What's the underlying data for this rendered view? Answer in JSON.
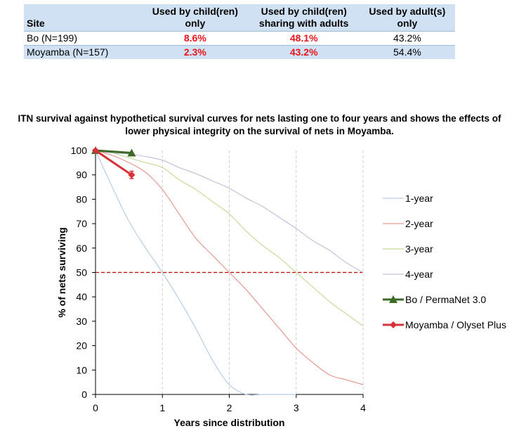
{
  "table": {
    "headers": [
      "Site",
      "Used by child(ren) only",
      "Used by child(ren) sharing with adults",
      "Used by adult(s) only"
    ],
    "header_lines": [
      [
        "Site"
      ],
      [
        "Used by child(ren)",
        "only"
      ],
      [
        "Used by child(ren)",
        "sharing with adults"
      ],
      [
        "Used by adult(s)",
        "only"
      ]
    ],
    "rows": [
      {
        "site": "Bo (N=199)",
        "children_only": "8.6%",
        "sharing": "48.1%",
        "adults_only": "43.2%"
      },
      {
        "site": "Moyamba (N=157)",
        "children_only": "2.3%",
        "sharing": "43.2%",
        "adults_only": "54.4%"
      }
    ],
    "highlight_color": "#e8161c",
    "header_bg": "#cfe1f3"
  },
  "chart_data": {
    "type": "line",
    "title": "ITN survival against hypothetical survival curves for nets lasting one to four years and shows the effects of lower physical integrity on the survival of nets in Moyamba.",
    "title_lines": [
      "ITN survival against hypothetical survival curves for nets lasting one to four years and shows the effects of",
      "lower physical integrity on the survival of nets in Moyamba."
    ],
    "xlabel": "Years since distribution",
    "ylabel": "% of nets surviving",
    "xlim": [
      0,
      4
    ],
    "ylim": [
      0,
      100
    ],
    "xticks": [
      0,
      1,
      2,
      3,
      4
    ],
    "yticks": [
      0,
      10,
      20,
      30,
      40,
      50,
      60,
      70,
      80,
      90,
      100
    ],
    "grid": "vertical dashed at each year",
    "reference_line": {
      "y": 50,
      "color": "#c00000",
      "style": "dashed"
    },
    "legend_position": "right",
    "series": [
      {
        "name": "1-year",
        "color": "#b8cde6",
        "marker": "none",
        "x": [
          0,
          0.25,
          0.5,
          0.75,
          1,
          1.25,
          1.5,
          1.75,
          2,
          2.25,
          2.5,
          2.75,
          3
        ],
        "y": [
          100,
          85,
          71,
          60,
          50,
          39,
          27,
          14,
          4,
          0,
          0,
          0,
          0
        ]
      },
      {
        "name": "2-year",
        "color": "#e79a93",
        "marker": "none",
        "x": [
          0,
          0.25,
          0.5,
          0.75,
          1,
          1.25,
          1.5,
          1.75,
          2,
          2.25,
          2.5,
          2.75,
          3,
          3.25,
          3.5,
          3.75,
          4
        ],
        "y": [
          100,
          98,
          95,
          91,
          84,
          74,
          64,
          57,
          50,
          43,
          35,
          27,
          19,
          13,
          8,
          6,
          4
        ]
      },
      {
        "name": "3-year",
        "color": "#c6dc9a",
        "marker": "none",
        "x": [
          0,
          0.25,
          0.5,
          0.75,
          1,
          1.25,
          1.5,
          1.75,
          2,
          2.25,
          2.5,
          2.75,
          3,
          3.25,
          3.5,
          3.75,
          4
        ],
        "y": [
          100,
          99,
          97,
          95,
          93,
          88,
          84,
          79,
          74,
          67,
          61,
          56,
          50,
          44,
          38,
          33,
          28
        ]
      },
      {
        "name": "4-year",
        "color": "#cbbfdc",
        "marker": "none",
        "x": [
          0,
          0.25,
          0.5,
          0.75,
          1,
          1.25,
          1.5,
          1.75,
          2,
          2.25,
          2.5,
          2.75,
          3,
          3.25,
          3.5,
          3.75,
          4
        ],
        "y": [
          100,
          99,
          98.5,
          97.5,
          96,
          93,
          90.5,
          87.5,
          84.5,
          80.5,
          77,
          72.5,
          68,
          63,
          59,
          54,
          50
        ]
      },
      {
        "name": "Bo / PermaNet 3.0",
        "color": "#3c6b26",
        "marker": "triangle",
        "x": [
          0,
          0.54
        ],
        "y": [
          100,
          99
        ]
      },
      {
        "name": "Moyamba / Olyset Plus",
        "color": "#d83239",
        "marker": "diamond",
        "x": [
          0,
          0.54
        ],
        "y": [
          100,
          90
        ],
        "error": [
          0,
          1.5
        ]
      }
    ]
  }
}
